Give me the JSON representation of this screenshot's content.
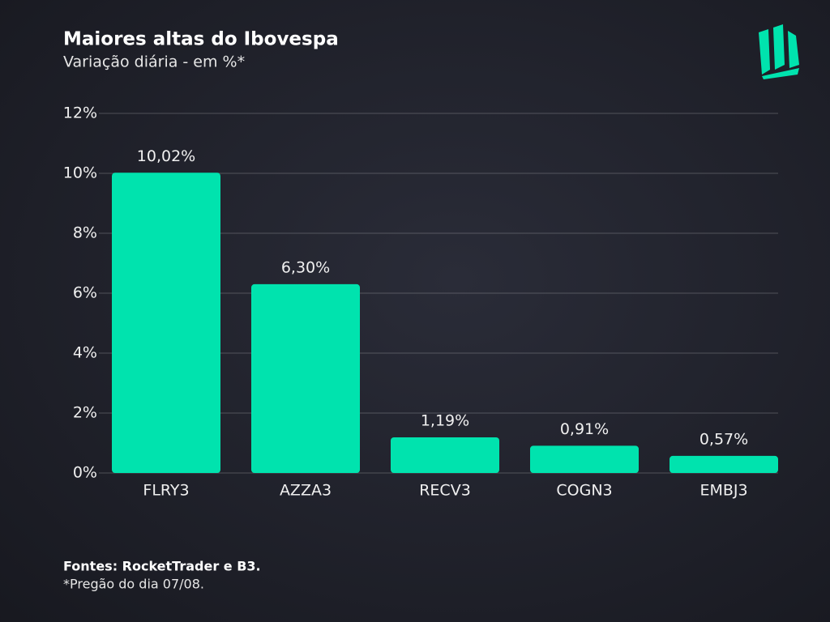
{
  "chart_data": {
    "type": "bar",
    "title": "Maiores altas do Ibovespa",
    "subtitle": "Variação diária - em %*",
    "categories": [
      "FLRY3",
      "AZZA3",
      "RECV3",
      "COGN3",
      "EMBJ3"
    ],
    "values": [
      10.02,
      6.3,
      1.19,
      0.91,
      0.57
    ],
    "value_labels": [
      "10,02%",
      "6,30%",
      "1,19%",
      "0,91%",
      "0,57%"
    ],
    "color": "#00e3ae",
    "ylim": [
      0,
      12
    ],
    "yticks": [
      {
        "value": 0,
        "label": "0%"
      },
      {
        "value": 2,
        "label": "2%"
      },
      {
        "value": 4,
        "label": "4%"
      },
      {
        "value": 6,
        "label": "6%"
      },
      {
        "value": 8,
        "label": "8%"
      },
      {
        "value": 10,
        "label": "10%"
      },
      {
        "value": 12,
        "label": "12%"
      }
    ],
    "grid": true,
    "source": "Fontes: RocketTrader e B3.",
    "note": "*Pregão do dia 07/08."
  }
}
